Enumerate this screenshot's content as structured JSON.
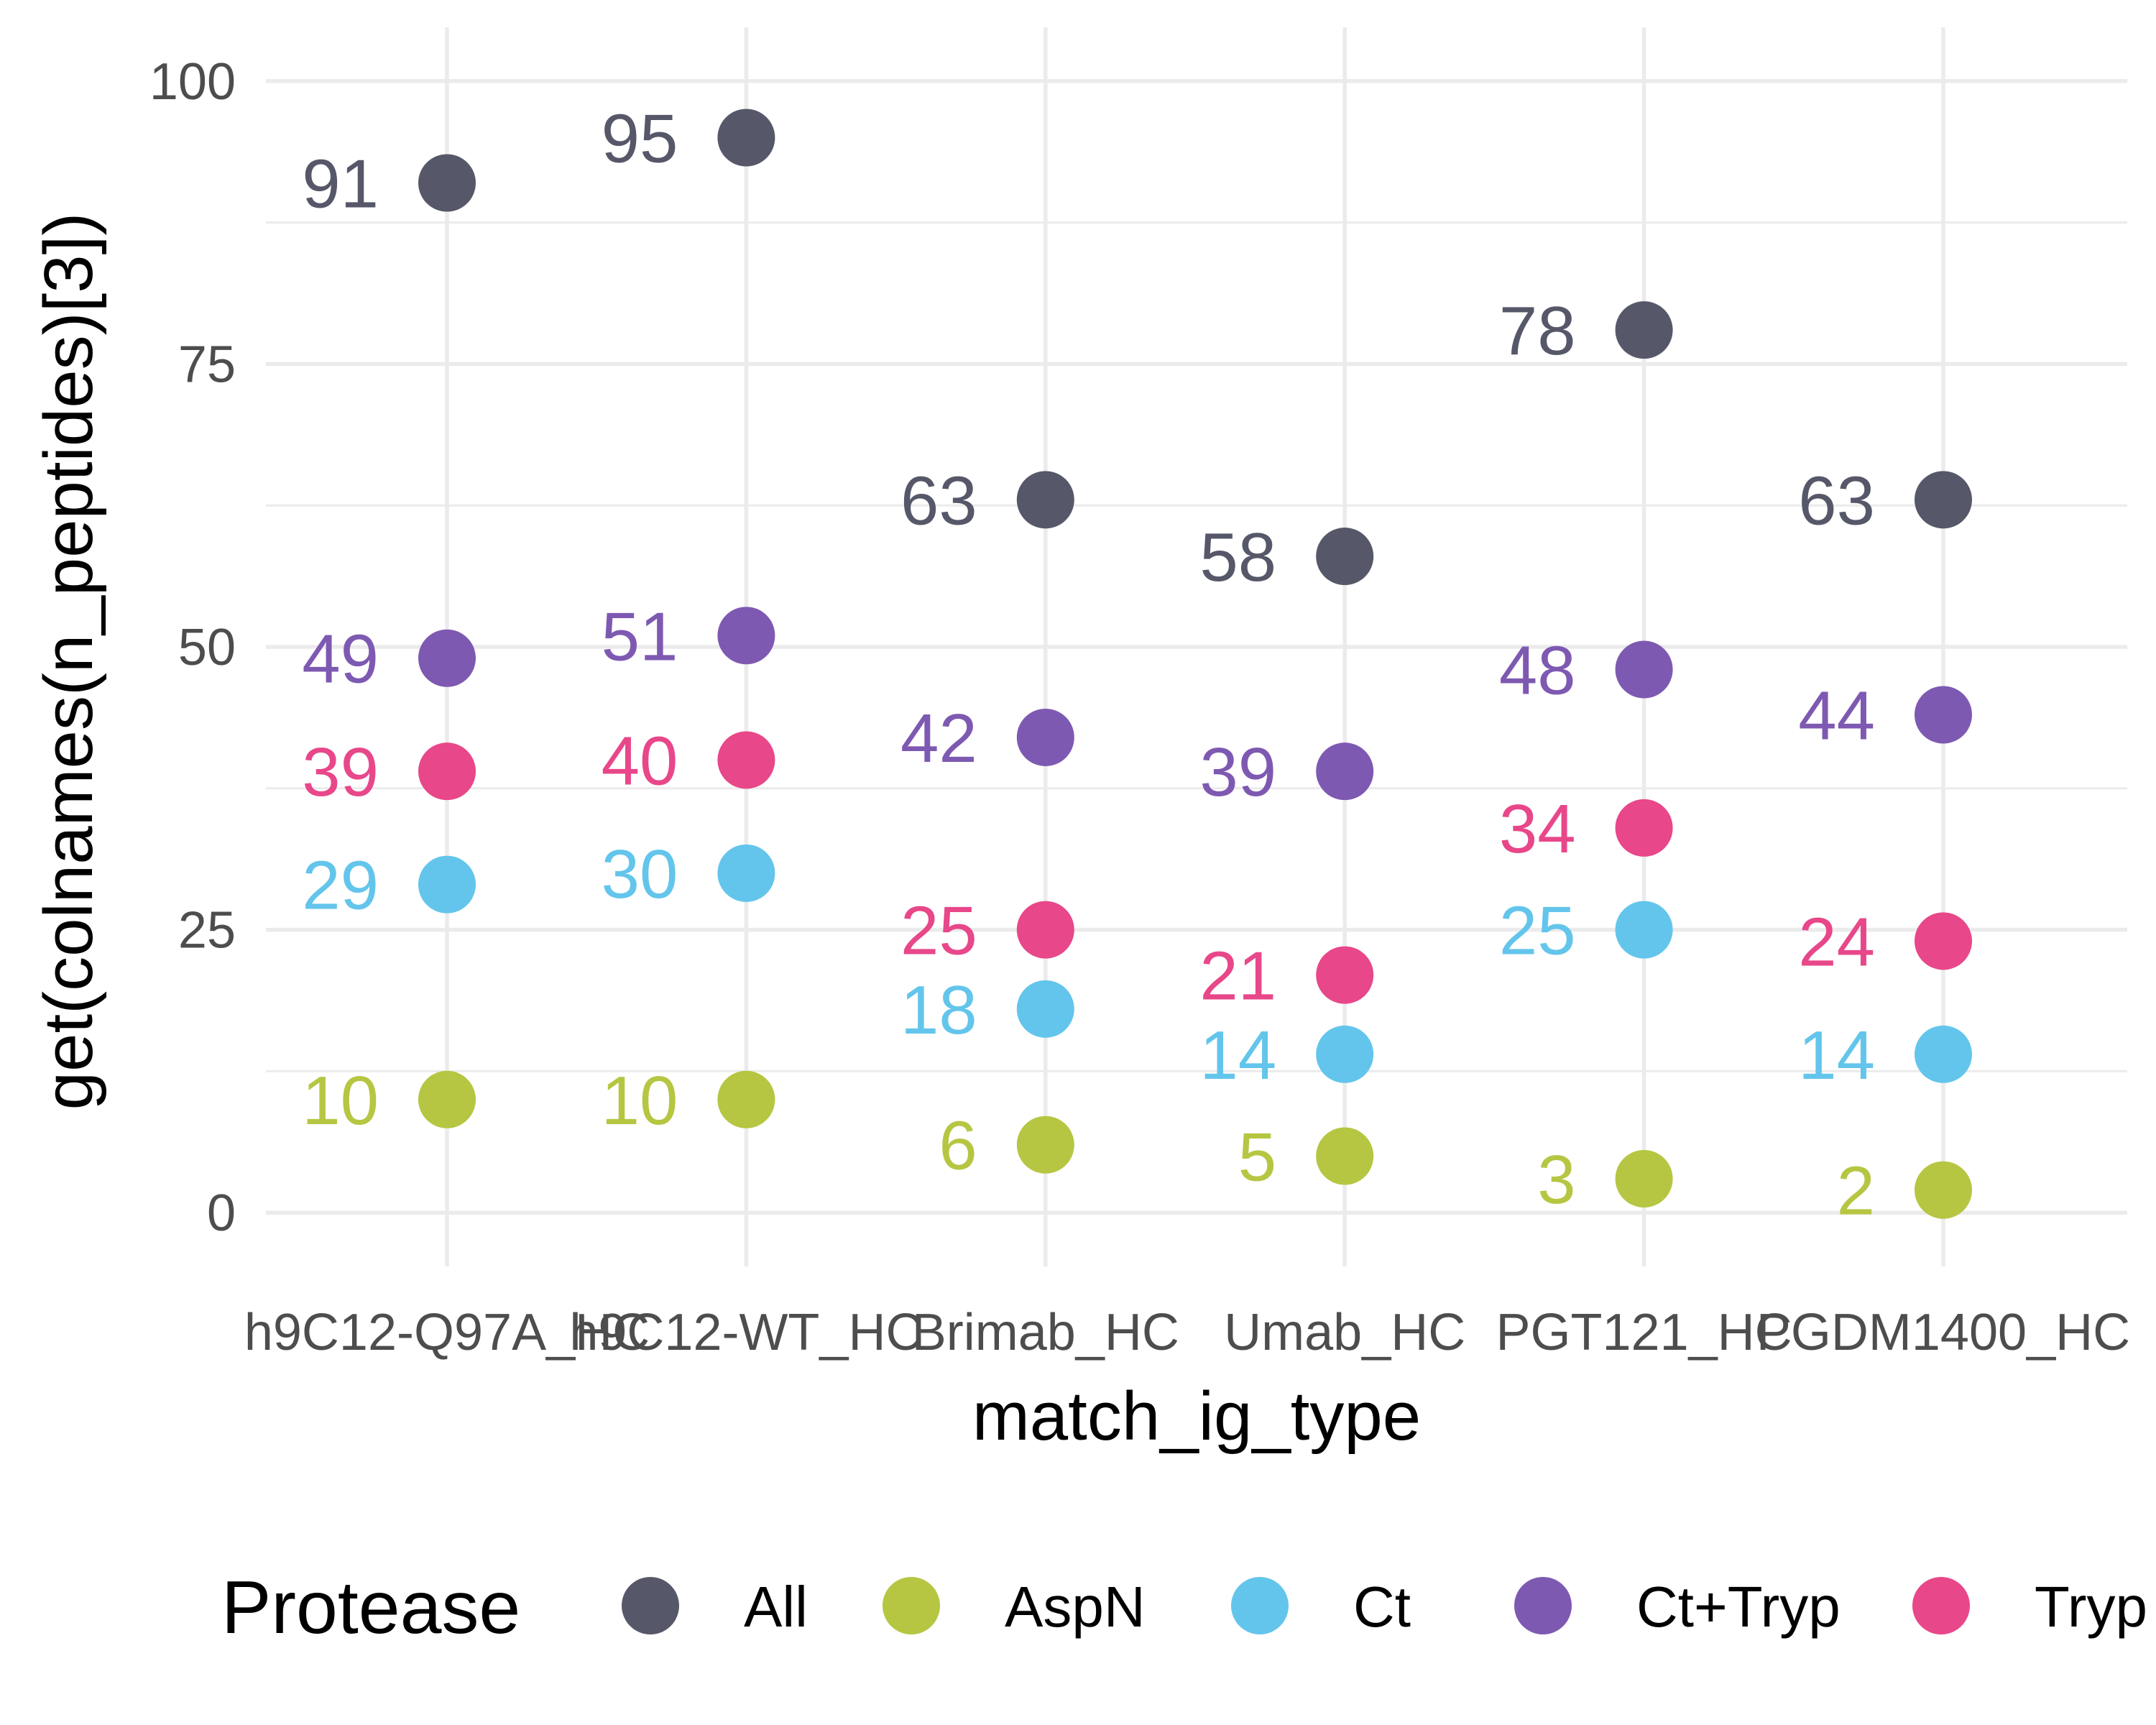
{
  "chart_data": {
    "type": "scatter",
    "xlabel": "match_ig_type",
    "ylabel": "get(colnames(n_peptides)[3])",
    "categories": [
      "h9C12-Q97A_HC",
      "h9C12-WT_HC",
      "Brimab_HC",
      "Umab_HC",
      "PGT121_HC",
      "PGDM1400_HC"
    ],
    "ylim": [
      -4.75,
      104.75
    ],
    "yticks": [
      0,
      25,
      50,
      75,
      100
    ],
    "ytick_labels": [
      "0",
      "25",
      "50",
      "75",
      "100"
    ],
    "grid": true,
    "legend": {
      "title": "Protease",
      "position": "bottom"
    },
    "series": [
      {
        "name": "All",
        "color": "#565869",
        "values": [
          91,
          95,
          63,
          58,
          78,
          63
        ],
        "labels": [
          "91",
          "95",
          "63",
          "58",
          "78",
          "63"
        ]
      },
      {
        "name": "AspN",
        "color": "#b6c642",
        "values": [
          10,
          10,
          6,
          5,
          3,
          2
        ],
        "labels": [
          "10",
          "10",
          "6",
          "5",
          "3",
          "2"
        ]
      },
      {
        "name": "Ct",
        "color": "#63c5eb",
        "values": [
          29,
          30,
          18,
          14,
          25,
          14
        ],
        "labels": [
          "29",
          "30",
          "18",
          "14",
          "25",
          "14"
        ]
      },
      {
        "name": "Ct+Tryp",
        "color": "#7e59b1",
        "values": [
          49,
          51,
          42,
          39,
          48,
          44
        ],
        "labels": [
          "49",
          "51",
          "42",
          "39",
          "48",
          "44"
        ]
      },
      {
        "name": "Tryp",
        "color": "#e8478a",
        "values": [
          39,
          40,
          25,
          21,
          34,
          24
        ],
        "labels": [
          "39",
          "40",
          "25",
          "21",
          "34",
          "24"
        ]
      }
    ]
  }
}
